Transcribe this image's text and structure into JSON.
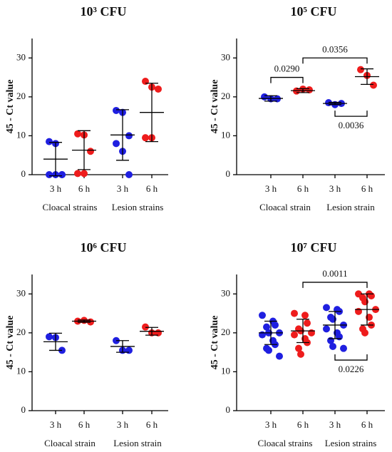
{
  "chart_data": [
    {
      "type": "dot",
      "title": "10³ CFU",
      "ylabel": "45 - Ct value",
      "categories": [
        "3 h",
        "6 h",
        "3 h",
        "6 h"
      ],
      "groups": [
        "Cloacal strains",
        "Lesion strains"
      ],
      "colors": [
        "#1f1fe0",
        "#ee1c1c",
        "#1f1fe0",
        "#ee1c1c"
      ],
      "points": [
        [
          8.5,
          8,
          0,
          0,
          0,
          0
        ],
        [
          10.5,
          10.2,
          6,
          0.3,
          0.3
        ],
        [
          16.5,
          16,
          10,
          8,
          6,
          0
        ],
        [
          24,
          22.5,
          22,
          9.5,
          9.5
        ]
      ],
      "means": [
        4,
        6.3,
        10.2,
        16
      ],
      "errors": [
        4.3,
        5,
        6.5,
        7.5
      ],
      "ylim": [
        0,
        35
      ],
      "yticks": [
        0,
        10,
        20,
        30
      ],
      "annotations": []
    },
    {
      "type": "dot",
      "title": "10⁵ CFU",
      "ylabel": "45 - Ct value",
      "categories": [
        "3 h",
        "6 h",
        "3 h",
        "6 h"
      ],
      "groups": [
        "Cloacal strain",
        "Lesion strain"
      ],
      "colors": [
        "#1f1fe0",
        "#ee1c1c",
        "#1f1fe0",
        "#ee1c1c"
      ],
      "points": [
        [
          20,
          19.5,
          19.5
        ],
        [
          21.5,
          22,
          21.8
        ],
        [
          18.5,
          18,
          18.3
        ],
        [
          27,
          25.5,
          23
        ]
      ],
      "means": [
        19.6,
        21.6,
        18.3,
        25.2
      ],
      "errors": [
        0.7,
        0.5,
        0.3,
        2
      ],
      "ylim": [
        0,
        35
      ],
      "yticks": [
        0,
        10,
        20,
        30
      ],
      "annotations": [
        {
          "label": "0.0290",
          "from": 0,
          "to": 1,
          "side": "above"
        },
        {
          "label": "0.0356",
          "from": 1,
          "to": 3,
          "side": "above"
        },
        {
          "label": "0.0036",
          "from": 2,
          "to": 3,
          "side": "below"
        }
      ]
    },
    {
      "type": "dot",
      "title": "10⁶ CFU",
      "ylabel": "45 - Ct value",
      "categories": [
        "3 h",
        "6 h",
        "3 h",
        "6 h"
      ],
      "groups": [
        "Cloacal strain",
        "Lesion strain"
      ],
      "colors": [
        "#1f1fe0",
        "#ee1c1c",
        "#1f1fe0",
        "#ee1c1c"
      ],
      "points": [
        [
          19,
          18.8,
          15.5
        ],
        [
          23,
          23.2,
          22.8
        ],
        [
          18,
          15.5,
          15.5
        ],
        [
          21.5,
          20,
          20
        ]
      ],
      "means": [
        17.7,
        23,
        16.5,
        20.4
      ],
      "errors": [
        2.2,
        0.3,
        1.5,
        1
      ],
      "ylim": [
        0,
        35
      ],
      "yticks": [
        0,
        10,
        20,
        30
      ],
      "annotations": []
    },
    {
      "type": "dot",
      "title": "10⁷ CFU",
      "ylabel": "45 - Ct value",
      "categories": [
        "3 h",
        "6 h",
        "3 h",
        "6 h"
      ],
      "groups": [
        "Cloacal strains",
        "Lesion strains"
      ],
      "colors": [
        "#1f1fe0",
        "#ee1c1c",
        "#1f1fe0",
        "#ee1c1c"
      ],
      "points": [
        [
          24.5,
          23,
          22,
          21.5,
          20,
          20,
          19.5,
          18,
          17,
          16,
          15.5,
          14
        ],
        [
          25,
          24.5,
          22.5,
          21,
          20.5,
          20,
          19.5,
          18.5,
          17.5,
          16,
          14.5
        ],
        [
          26.5,
          26,
          25.5,
          24,
          23.5,
          22,
          21,
          20,
          19,
          18,
          16.5,
          16
        ],
        [
          30,
          30,
          29.5,
          29,
          28,
          26,
          25.5,
          24,
          22,
          21,
          20
        ]
      ],
      "means": [
        20,
        20.5,
        22,
        26
      ],
      "errors": [
        3,
        3,
        3.5,
        4
      ],
      "ylim": [
        0,
        35
      ],
      "yticks": [
        0,
        10,
        20,
        30
      ],
      "annotations": [
        {
          "label": "0.0011",
          "from": 1,
          "to": 3,
          "side": "above"
        },
        {
          "label": "0.0226",
          "from": 2,
          "to": 3,
          "side": "below"
        }
      ]
    }
  ]
}
